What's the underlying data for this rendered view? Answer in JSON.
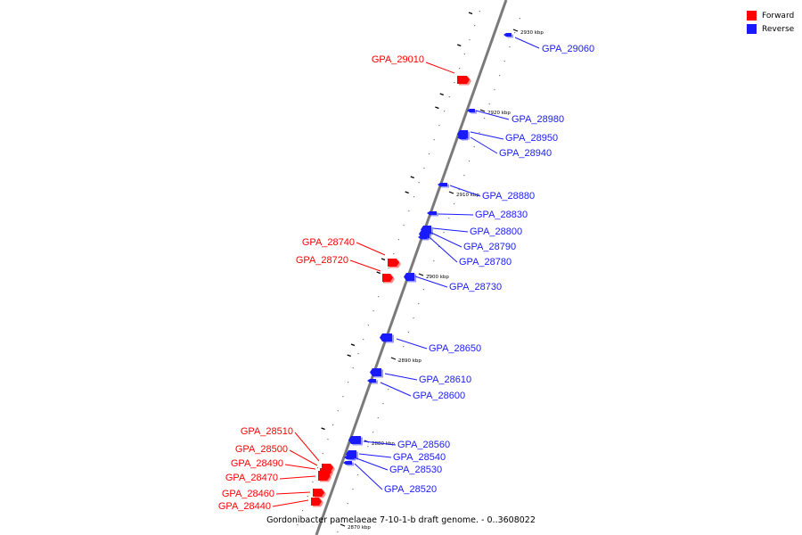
{
  "legend": {
    "forward": {
      "label": "Forward",
      "color": "#ff0000"
    },
    "reverse": {
      "label": "Reverse",
      "color": "#1a1aff"
    }
  },
  "caption": "Gordonibacter pamelaeae 7-10-1-b draft genome. - 0..3608022",
  "ticks": [
    {
      "label": "2930 kbp"
    },
    {
      "label": "2920 kbp"
    },
    {
      "label": "2910 kbp"
    },
    {
      "label": "2900 kbp"
    },
    {
      "label": "2890 kbp"
    },
    {
      "label": "2880 kbp"
    },
    {
      "label": "2870 kbp"
    }
  ],
  "genes": [
    {
      "label": "GPA_29060",
      "strand": "reverse"
    },
    {
      "label": "GPA_29010",
      "strand": "forward"
    },
    {
      "label": "GPA_28980",
      "strand": "reverse"
    },
    {
      "label": "GPA_28950",
      "strand": "reverse"
    },
    {
      "label": "GPA_28940",
      "strand": "reverse"
    },
    {
      "label": "GPA_28880",
      "strand": "reverse"
    },
    {
      "label": "GPA_28830",
      "strand": "reverse"
    },
    {
      "label": "GPA_28800",
      "strand": "reverse"
    },
    {
      "label": "GPA_28790",
      "strand": "reverse"
    },
    {
      "label": "GPA_28780",
      "strand": "reverse"
    },
    {
      "label": "GPA_28740",
      "strand": "forward"
    },
    {
      "label": "GPA_28720",
      "strand": "forward"
    },
    {
      "label": "GPA_28730",
      "strand": "reverse"
    },
    {
      "label": "GPA_28650",
      "strand": "reverse"
    },
    {
      "label": "GPA_28610",
      "strand": "reverse"
    },
    {
      "label": "GPA_28600",
      "strand": "reverse"
    },
    {
      "label": "GPA_28510",
      "strand": "forward"
    },
    {
      "label": "GPA_28500",
      "strand": "forward"
    },
    {
      "label": "GPA_28490",
      "strand": "forward"
    },
    {
      "label": "GPA_28470",
      "strand": "forward"
    },
    {
      "label": "GPA_28460",
      "strand": "forward"
    },
    {
      "label": "GPA_28440",
      "strand": "forward"
    },
    {
      "label": "GPA_28560",
      "strand": "reverse"
    },
    {
      "label": "GPA_28540",
      "strand": "reverse"
    },
    {
      "label": "GPA_28530",
      "strand": "reverse"
    },
    {
      "label": "GPA_28520",
      "strand": "reverse"
    }
  ]
}
